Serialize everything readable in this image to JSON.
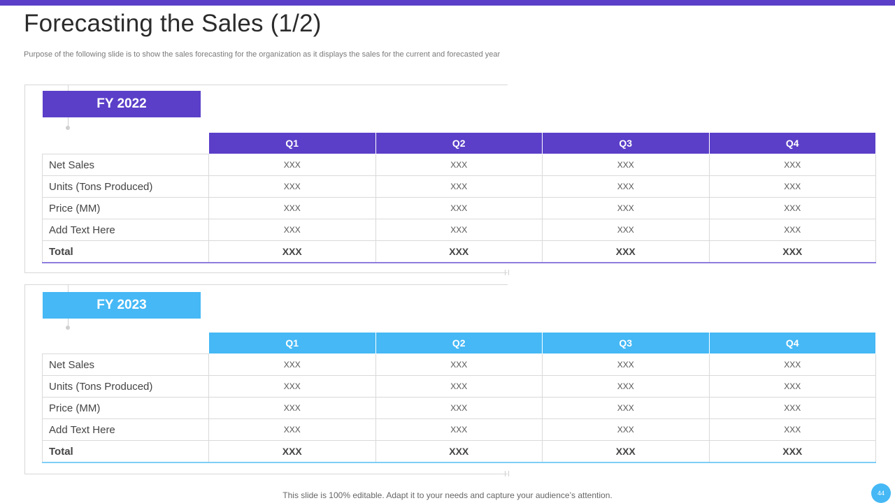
{
  "slide": {
    "title": "Forecasting the Sales (1/2)",
    "subtitle": "Purpose of the following slide is to show the sales forecasting for the organization as it displays the sales for the current and forecasted year",
    "footer": "This slide is 100% editable. Adapt it to your needs and capture your audience’s attention.",
    "page_number": "44"
  },
  "colors": {
    "fy2022_accent": "#5b3fc8",
    "fy2023_accent": "#45b8f5"
  },
  "tables": [
    {
      "label": "FY 2022",
      "headers": [
        "Q1",
        "Q2",
        "Q3",
        "Q4"
      ],
      "rows": [
        {
          "label": "Net Sales",
          "values": [
            "XXX",
            "XXX",
            "XXX",
            "XXX"
          ]
        },
        {
          "label": "Units (Tons Produced)",
          "values": [
            "XXX",
            "XXX",
            "XXX",
            "XXX"
          ]
        },
        {
          "label": "Price (MM)",
          "values": [
            "XXX",
            "XXX",
            "XXX",
            "XXX"
          ]
        },
        {
          "label": "Add Text Here",
          "values": [
            "XXX",
            "XXX",
            "XXX",
            "XXX"
          ]
        },
        {
          "label": "Total",
          "values": [
            "XXX",
            "XXX",
            "XXX",
            "XXX"
          ]
        }
      ]
    },
    {
      "label": "FY 2023",
      "headers": [
        "Q1",
        "Q2",
        "Q3",
        "Q4"
      ],
      "rows": [
        {
          "label": "Net Sales",
          "values": [
            "XXX",
            "XXX",
            "XXX",
            "XXX"
          ]
        },
        {
          "label": "Units (Tons Produced)",
          "values": [
            "XXX",
            "XXX",
            "XXX",
            "XXX"
          ]
        },
        {
          "label": "Price (MM)",
          "values": [
            "XXX",
            "XXX",
            "XXX",
            "XXX"
          ]
        },
        {
          "label": "Add Text Here",
          "values": [
            "XXX",
            "XXX",
            "XXX",
            "XXX"
          ]
        },
        {
          "label": "Total",
          "values": [
            "XXX",
            "XXX",
            "XXX",
            "XXX"
          ]
        }
      ]
    }
  ]
}
